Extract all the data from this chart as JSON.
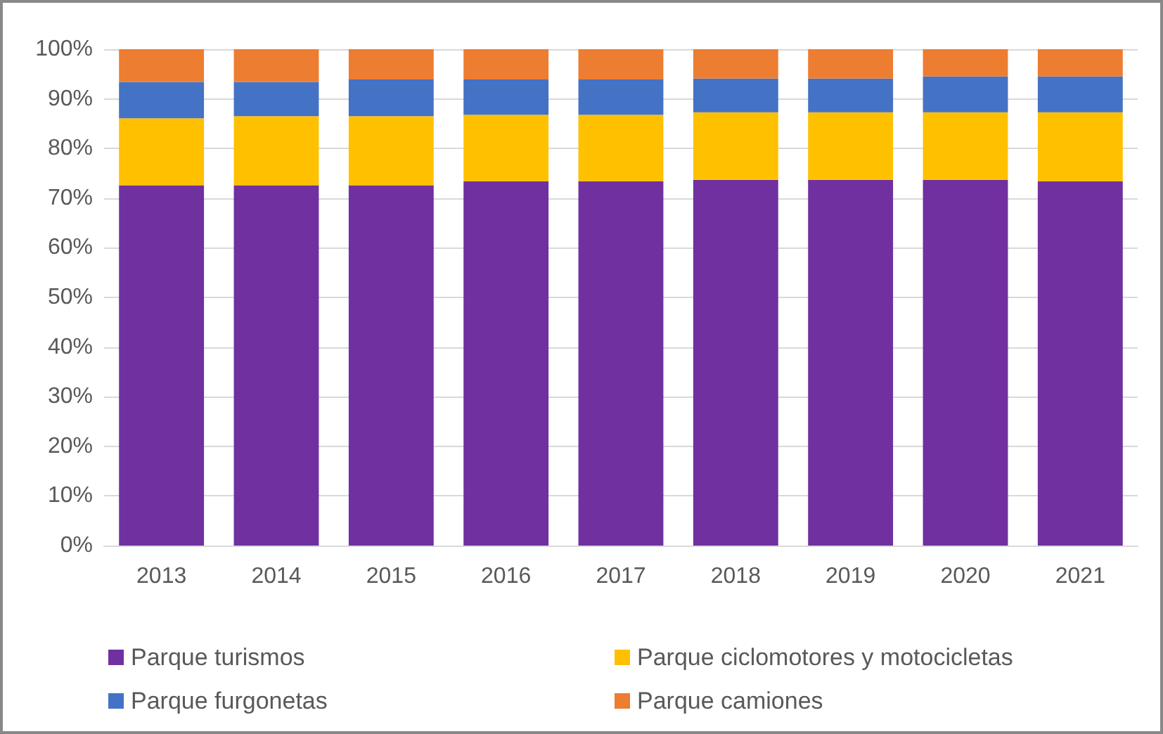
{
  "chart_data": {
    "type": "bar",
    "stacked": true,
    "categories": [
      "2013",
      "2014",
      "2015",
      "2016",
      "2017",
      "2018",
      "2019",
      "2020",
      "2021"
    ],
    "series": [
      {
        "name": "Parque turismos",
        "color": "#7030a0",
        "values": [
          72.6,
          72.6,
          72.6,
          73.4,
          73.4,
          73.7,
          73.7,
          73.7,
          73.4
        ]
      },
      {
        "name": "Parque ciclomotores y motocicletas",
        "color": "#ffc000",
        "values": [
          13.5,
          13.9,
          13.9,
          13.4,
          13.4,
          13.6,
          13.6,
          13.6,
          13.9
        ]
      },
      {
        "name": "Parque furgonetas",
        "color": "#4472c4",
        "values": [
          7.3,
          6.9,
          7.4,
          7.1,
          7.1,
          6.8,
          6.8,
          7.2,
          7.2
        ]
      },
      {
        "name": "Parque camiones",
        "color": "#ed7d31",
        "values": [
          6.6,
          6.6,
          6.1,
          6.1,
          6.1,
          5.9,
          5.9,
          5.5,
          5.5
        ]
      }
    ],
    "ylim": [
      0,
      100
    ],
    "yticks": [
      {
        "value": 0,
        "label": "0%"
      },
      {
        "value": 10,
        "label": "10%"
      },
      {
        "value": 20,
        "label": "20%"
      },
      {
        "value": 30,
        "label": "30%"
      },
      {
        "value": 40,
        "label": "40%"
      },
      {
        "value": 50,
        "label": "50%"
      },
      {
        "value": 60,
        "label": "60%"
      },
      {
        "value": 70,
        "label": "70%"
      },
      {
        "value": 80,
        "label": "80%"
      },
      {
        "value": 90,
        "label": "90%"
      },
      {
        "value": 100,
        "label": "100%"
      }
    ],
    "grid": "y",
    "legend": "bottom"
  }
}
